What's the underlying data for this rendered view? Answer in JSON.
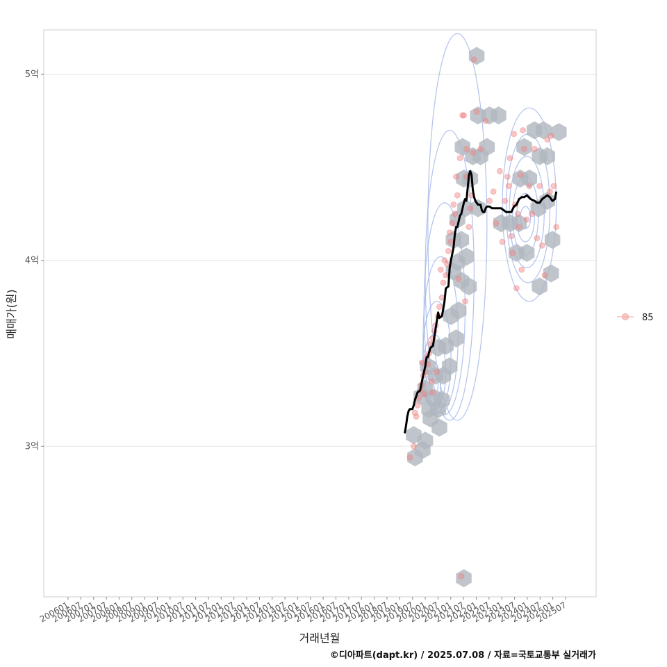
{
  "chart_data": {
    "type": "scatter",
    "title": "",
    "xlabel": "거래년월",
    "ylabel": "매매가(원)",
    "caption": "©디아파트(dapt.kr) / 2025.07.08 / 자료=국토교통부 실거래가",
    "x_tick_labels": [
      "200601",
      "200607",
      "200701",
      "200707",
      "200801",
      "200807",
      "200901",
      "200907",
      "201001",
      "201007",
      "201101",
      "201107",
      "201201",
      "201207",
      "201301",
      "201307",
      "201401",
      "201407",
      "201501",
      "201507",
      "201601",
      "201607",
      "201701",
      "201707",
      "201801",
      "201807",
      "201901",
      "201907",
      "202001",
      "202007",
      "202101",
      "202107",
      "202201",
      "202207",
      "202301",
      "202307",
      "202401",
      "202407",
      "202501",
      "202507"
    ],
    "y_ticks": [
      {
        "value": 300000000,
        "label": "3억"
      },
      {
        "value": 400000000,
        "label": "4억"
      },
      {
        "value": 500000000,
        "label": "5억"
      }
    ],
    "xlim": [
      2005.5,
      2027.0
    ],
    "ylim": [
      219000000,
      524000000
    ],
    "legend": {
      "position": "right",
      "entries": [
        {
          "label": "85",
          "color": "#f4a6a6"
        }
      ]
    },
    "colors": {
      "points": "#f08080",
      "hex": "#b0b7bf",
      "contour": "#9fb3ea",
      "trend": "#000000",
      "grid": "#e6e6e6",
      "panel_border": "#cccccc"
    },
    "series": [
      {
        "name": "85",
        "kind": "points",
        "x": [
          2019.75,
          2019.9,
          2019.95,
          2020.0,
          2020.05,
          2020.1,
          2020.15,
          2020.2,
          2020.22,
          2020.27,
          2020.3,
          2020.35,
          2020.4,
          2020.45,
          2020.5,
          2020.55,
          2020.6,
          2020.62,
          2020.65,
          2020.7,
          2020.75,
          2020.8,
          2020.85,
          2020.9,
          2020.95,
          2021.0,
          2021.05,
          2021.1,
          2021.15,
          2021.2,
          2021.25,
          2021.3,
          2021.35,
          2021.4,
          2021.45,
          2021.5,
          2021.55,
          2021.6,
          2021.65,
          2021.7,
          2021.75,
          2021.8,
          2021.85,
          2021.9,
          2021.95,
          2021.97,
          2022.05,
          2022.1,
          2022.15,
          2022.2,
          2022.25,
          2022.35,
          2022.5,
          2022.7,
          2022.85,
          2023.0,
          2023.1,
          2023.25,
          2023.35,
          2023.45,
          2023.55,
          2023.6,
          2023.65,
          2023.7,
          2023.75,
          2023.8,
          2023.85,
          2023.9,
          2023.95,
          2024.0,
          2024.05,
          2024.1,
          2024.15,
          2024.2,
          2024.3,
          2024.4,
          2024.5,
          2024.6,
          2024.7,
          2024.8,
          2024.9,
          2025.0,
          2025.1,
          2025.2,
          2025.25,
          2025.35,
          2025.45
        ],
        "y": [
          294000000,
          300000000,
          318000000,
          316000000,
          322000000,
          326000000,
          330000000,
          333000000,
          345000000,
          338000000,
          328000000,
          340000000,
          348000000,
          344000000,
          350000000,
          355000000,
          335000000,
          329000000,
          358000000,
          362000000,
          365000000,
          340000000,
          370000000,
          375000000,
          395000000,
          380000000,
          388000000,
          400000000,
          392000000,
          398000000,
          405000000,
          415000000,
          410000000,
          420000000,
          430000000,
          425000000,
          445000000,
          435000000,
          390000000,
          455000000,
          230000000,
          478000000,
          478000000,
          378000000,
          460000000,
          445000000,
          418000000,
          428000000,
          435000000,
          458000000,
          508000000,
          480000000,
          460000000,
          475000000,
          432000000,
          437000000,
          420000000,
          448000000,
          410000000,
          432000000,
          445000000,
          440000000,
          455000000,
          413000000,
          404000000,
          468000000,
          430000000,
          385000000,
          425000000,
          418000000,
          446000000,
          395000000,
          470000000,
          460000000,
          422000000,
          440000000,
          425000000,
          460000000,
          412000000,
          440000000,
          408000000,
          392000000,
          465000000,
          437000000,
          467000000,
          440000000,
          418000000
        ]
      },
      {
        "name": "trend",
        "kind": "line",
        "x": [
          2019.55,
          2019.6,
          2019.65,
          2019.7,
          2019.75,
          2019.85,
          2019.9,
          2019.95,
          2020.05,
          2020.15,
          2020.25,
          2020.35,
          2020.4,
          2020.45,
          2020.55,
          2020.65,
          2020.75,
          2020.85,
          2020.9,
          2021.0,
          2021.05,
          2021.1,
          2021.15,
          2021.25,
          2021.3,
          2021.35,
          2021.45,
          2021.5,
          2021.55,
          2021.6,
          2021.7,
          2021.75,
          2021.85,
          2021.9,
          2021.95,
          2022.05,
          2022.1,
          2022.15,
          2022.2,
          2022.25,
          2022.3,
          2022.4,
          2022.5,
          2022.55,
          2022.6,
          2022.65,
          2022.7,
          2022.75,
          2022.85,
          2022.95,
          2023.05,
          2023.15,
          2023.3,
          2023.4,
          2023.5,
          2023.6,
          2023.7,
          2023.8,
          2023.9,
          2024.0,
          2024.1,
          2024.2,
          2024.3,
          2024.45,
          2024.6,
          2024.7,
          2024.8,
          2024.9,
          2025.0,
          2025.1,
          2025.2,
          2025.3,
          2025.4,
          2025.45
        ],
        "y": [
          307000000,
          311000000,
          316000000,
          319000000,
          320000000,
          320000000,
          322000000,
          325000000,
          329000000,
          330000000,
          337000000,
          343000000,
          348000000,
          348000000,
          353000000,
          354000000,
          363000000,
          372000000,
          369000000,
          370000000,
          374000000,
          378000000,
          385000000,
          386000000,
          396000000,
          400000000,
          407000000,
          414000000,
          418000000,
          418000000,
          424000000,
          425000000,
          431000000,
          433000000,
          432000000,
          446000000,
          448000000,
          446000000,
          438000000,
          434000000,
          432000000,
          430000000,
          430000000,
          427000000,
          426000000,
          426000000,
          428000000,
          429000000,
          429000000,
          428000000,
          428000000,
          428000000,
          428000000,
          427000000,
          426000000,
          426000000,
          426000000,
          429000000,
          430000000,
          433000000,
          434000000,
          434000000,
          435000000,
          433000000,
          432000000,
          431000000,
          431000000,
          433000000,
          434000000,
          435000000,
          434000000,
          432000000,
          433000000,
          437000000
        ]
      }
    ],
    "hexbin_centers": [
      {
        "x": 2022.35,
        "y": 510000000
      },
      {
        "x": 2022.4,
        "y": 478000000
      },
      {
        "x": 2022.85,
        "y": 478000000
      },
      {
        "x": 2023.2,
        "y": 478000000
      },
      {
        "x": 2021.8,
        "y": 461000000
      },
      {
        "x": 2022.2,
        "y": 456000000
      },
      {
        "x": 2022.5,
        "y": 456000000
      },
      {
        "x": 2022.75,
        "y": 461000000
      },
      {
        "x": 2024.6,
        "y": 470000000
      },
      {
        "x": 2024.95,
        "y": 470000000
      },
      {
        "x": 2025.55,
        "y": 469000000
      },
      {
        "x": 2021.85,
        "y": 444000000
      },
      {
        "x": 2022.1,
        "y": 444000000
      },
      {
        "x": 2024.2,
        "y": 461000000
      },
      {
        "x": 2024.8,
        "y": 456000000
      },
      {
        "x": 2025.1,
        "y": 456000000
      },
      {
        "x": 2022.4,
        "y": 428000000
      },
      {
        "x": 2024.05,
        "y": 444000000
      },
      {
        "x": 2024.4,
        "y": 444000000
      },
      {
        "x": 2021.6,
        "y": 422000000
      },
      {
        "x": 2021.9,
        "y": 428000000
      },
      {
        "x": 2024.75,
        "y": 428000000
      },
      {
        "x": 2025.1,
        "y": 432000000
      },
      {
        "x": 2021.45,
        "y": 411000000
      },
      {
        "x": 2021.75,
        "y": 411000000
      },
      {
        "x": 2023.3,
        "y": 420000000
      },
      {
        "x": 2023.65,
        "y": 420000000
      },
      {
        "x": 2024.0,
        "y": 420000000
      },
      {
        "x": 2025.3,
        "y": 411000000
      },
      {
        "x": 2021.6,
        "y": 399000000
      },
      {
        "x": 2021.95,
        "y": 402000000
      },
      {
        "x": 2023.9,
        "y": 404000000
      },
      {
        "x": 2024.3,
        "y": 404000000
      },
      {
        "x": 2021.45,
        "y": 394000000
      },
      {
        "x": 2021.75,
        "y": 389000000
      },
      {
        "x": 2022.05,
        "y": 386000000
      },
      {
        "x": 2025.25,
        "y": 393000000
      },
      {
        "x": 2024.8,
        "y": 386000000
      },
      {
        "x": 2021.65,
        "y": 373000000
      },
      {
        "x": 2021.35,
        "y": 370000000
      },
      {
        "x": 2021.55,
        "y": 358000000
      },
      {
        "x": 2021.15,
        "y": 354000000
      },
      {
        "x": 2020.85,
        "y": 353000000
      },
      {
        "x": 2021.3,
        "y": 343000000
      },
      {
        "x": 2020.45,
        "y": 343000000
      },
      {
        "x": 2020.75,
        "y": 338000000
      },
      {
        "x": 2021.05,
        "y": 338000000
      },
      {
        "x": 2020.35,
        "y": 331000000
      },
      {
        "x": 2020.7,
        "y": 326000000
      },
      {
        "x": 2021.0,
        "y": 325000000
      },
      {
        "x": 2020.2,
        "y": 327000000
      },
      {
        "x": 2020.5,
        "y": 320000000
      },
      {
        "x": 2020.85,
        "y": 320000000
      },
      {
        "x": 2020.55,
        "y": 315000000
      },
      {
        "x": 2020.35,
        "y": 303000000
      },
      {
        "x": 2020.9,
        "y": 310000000
      },
      {
        "x": 2020.25,
        "y": 298000000
      },
      {
        "x": 2019.95,
        "y": 294000000
      },
      {
        "x": 2019.9,
        "y": 306000000
      },
      {
        "x": 2021.85,
        "y": 229000000
      }
    ],
    "density_contours": [
      {
        "cx": 2020.6,
        "cy": 333000000,
        "rx": 0.25,
        "ry": 6000000
      },
      {
        "cx": 2020.6,
        "cy": 334000000,
        "rx": 0.35,
        "ry": 12000000
      },
      {
        "cx": 2020.7,
        "cy": 340000000,
        "rx": 0.45,
        "ry": 20000000
      },
      {
        "cx": 2020.8,
        "cy": 348000000,
        "rx": 0.55,
        "ry": 30000000
      },
      {
        "cx": 2020.95,
        "cy": 360000000,
        "rx": 0.68,
        "ry": 42000000
      },
      {
        "cx": 2021.1,
        "cy": 374000000,
        "rx": 0.8,
        "ry": 57000000
      },
      {
        "cx": 2021.3,
        "cy": 392000000,
        "rx": 0.95,
        "ry": 78000000
      },
      {
        "cx": 2021.6,
        "cy": 418000000,
        "rx": 1.15,
        "ry": 104000000
      },
      {
        "cx": 2024.25,
        "cy": 423000000,
        "rx": 0.2,
        "ry": 6000000
      },
      {
        "cx": 2024.25,
        "cy": 423000000,
        "rx": 0.35,
        "ry": 13000000
      },
      {
        "cx": 2024.25,
        "cy": 424000000,
        "rx": 0.5,
        "ry": 21000000
      },
      {
        "cx": 2024.3,
        "cy": 426000000,
        "rx": 0.68,
        "ry": 30000000
      },
      {
        "cx": 2024.35,
        "cy": 428000000,
        "rx": 0.85,
        "ry": 40000000
      },
      {
        "cx": 2024.4,
        "cy": 430000000,
        "rx": 1.05,
        "ry": 52000000
      }
    ]
  }
}
